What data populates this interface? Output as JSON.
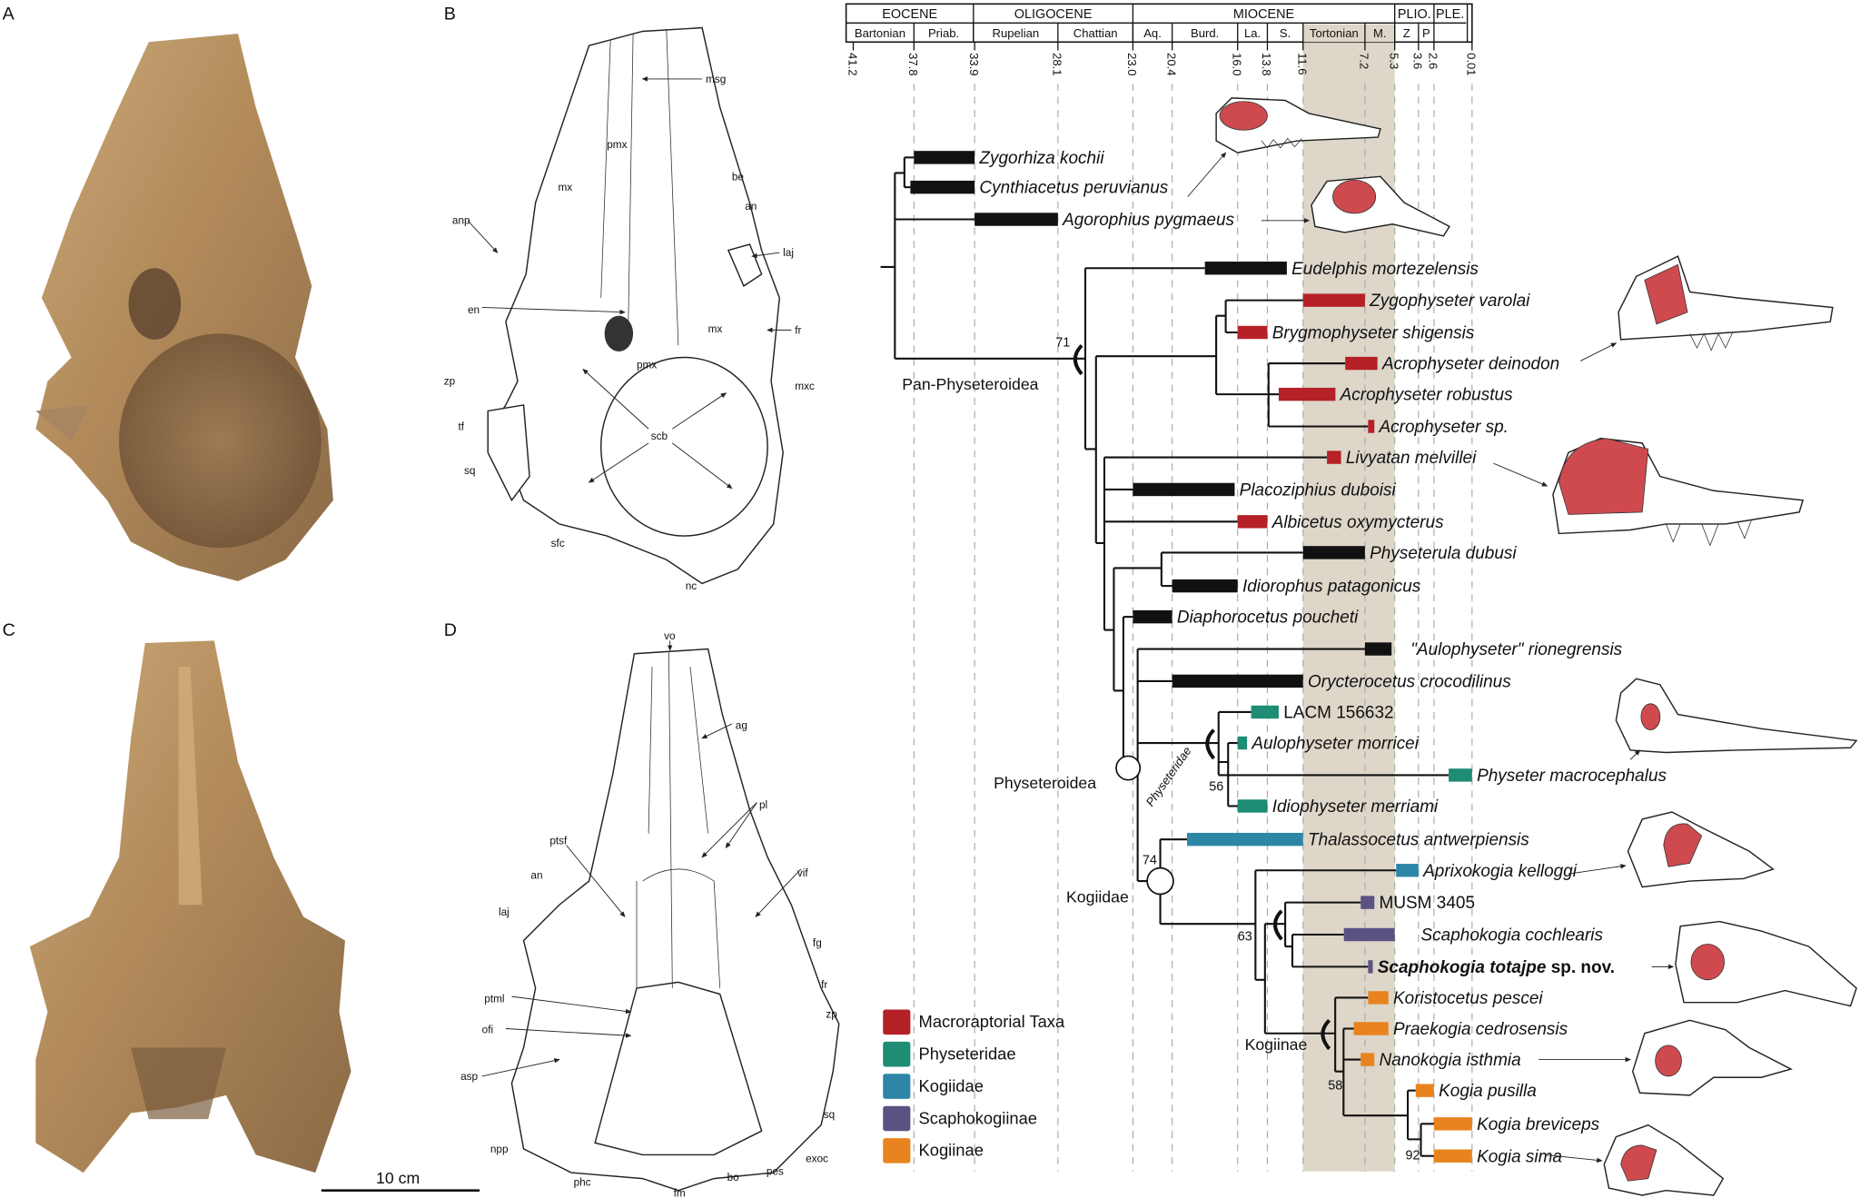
{
  "panels": {
    "a": "A",
    "b": "B",
    "c": "C",
    "d": "D"
  },
  "scale_bar": "10 cm",
  "panel_b_labels": [
    "msg",
    "pmx",
    "mx",
    "be",
    "an",
    "anp",
    "laj",
    "en",
    "mx",
    "fr",
    "pmx",
    "zp",
    "mxc",
    "tf",
    "scb",
    "sq",
    "sfc",
    "nc"
  ],
  "panel_d_labels": [
    "vo",
    "ag",
    "pl",
    "ptsf",
    "an",
    "vif",
    "laj",
    "fg",
    "fr",
    "ptml",
    "zp",
    "ofi",
    "asp",
    "sq",
    "npp",
    "exoc",
    "phc",
    "pes",
    "bo",
    "fm"
  ],
  "timescale": {
    "epochs": [
      "EOCENE",
      "OLIGOCENE",
      "MIOCENE",
      "PLIO.",
      "PLE."
    ],
    "stages": [
      "Bartonian",
      "Priab.",
      "Rupelian",
      "Chattian",
      "Aq.",
      "Burd.",
      "La.",
      "S.",
      "Tortonian",
      "M.",
      "Z",
      "P"
    ],
    "ticks": [
      "41.2",
      "37.8",
      "33.9",
      "28.1",
      "23.0",
      "20.4",
      "16.0",
      "13.8",
      "11.6",
      "7.2",
      "5.3",
      "3.6",
      "2.6",
      "0.01"
    ],
    "highlight_interval_ma": [
      11.6,
      5.3
    ],
    "highlight_color": "#ddd6c9"
  },
  "clades": {
    "pan": "Pan-Physeteroidea",
    "physeteroidea": "Physeteroidea",
    "physeteridae": "Physeteridae",
    "kogiidae": "Kogiidae",
    "kogiinae": "Kogiinae"
  },
  "support": {
    "pan": "71",
    "physeteridae": "56",
    "kogiidae": "74",
    "scapho": "63",
    "kogiinae": "58",
    "kogia": "92"
  },
  "groups": {
    "none": "#111111",
    "macro": "#b52126",
    "physeteridae": "#1f8c74",
    "kogiidae": "#2e86a6",
    "scapho": "#5b5283",
    "kogiinae": "#e8831f"
  },
  "legend": [
    {
      "label": "Macroraptorial Taxa",
      "group": "macro"
    },
    {
      "label": "Physeteridae",
      "group": "physeteridae"
    },
    {
      "label": "Kogiidae",
      "group": "kogiidae"
    },
    {
      "label": "Scaphokogiinae",
      "group": "scapho"
    },
    {
      "label": "Kogiinae",
      "group": "kogiinae"
    }
  ],
  "taxa": [
    {
      "name": "Zygorhiza kochii",
      "group": "none",
      "range_ma": [
        37.8,
        33.9
      ],
      "italic": true
    },
    {
      "name": "Cynthiacetus peruvianus",
      "group": "none",
      "range_ma": [
        38.0,
        33.9
      ],
      "italic": true
    },
    {
      "name": "Agorophius pygmaeus",
      "group": "none",
      "range_ma": [
        33.9,
        28.1
      ],
      "italic": true
    },
    {
      "name": "Eudelphis mortezelensis",
      "group": "none",
      "range_ma": [
        18.2,
        12.6
      ],
      "italic": true
    },
    {
      "name": "Zygophyseter varolai",
      "group": "macro",
      "range_ma": [
        11.6,
        7.2
      ],
      "italic": true
    },
    {
      "name": "Brygmophyseter shigensis",
      "group": "macro",
      "range_ma": [
        16.0,
        13.8
      ],
      "italic": true
    },
    {
      "name": "Acrophyseter deinodon",
      "group": "macro",
      "range_ma": [
        8.6,
        6.4
      ],
      "italic": true
    },
    {
      "name": "Acrophyseter robustus",
      "group": "macro",
      "range_ma": [
        13.1,
        9.3
      ],
      "italic": true
    },
    {
      "name": "Acrophyseter sp.",
      "group": "macro",
      "range_ma": [
        7.0,
        6.6
      ],
      "italic": true
    },
    {
      "name": "Livyatan melvillei",
      "group": "macro",
      "range_ma": [
        9.9,
        8.9
      ],
      "italic": true
    },
    {
      "name": "Placoziphius duboisi",
      "group": "none",
      "range_ma": [
        23.0,
        16.2
      ],
      "italic": true
    },
    {
      "name": "Albicetus oxymycterus",
      "group": "macro",
      "range_ma": [
        16.0,
        13.8
      ],
      "italic": true
    },
    {
      "name": "Physeterula dubusi",
      "group": "none",
      "range_ma": [
        11.6,
        7.2
      ],
      "italic": true
    },
    {
      "name": "Idiorophus patagonicus",
      "group": "none",
      "range_ma": [
        20.4,
        16.0
      ],
      "italic": true
    },
    {
      "name": "Diaphorocetus poucheti",
      "group": "none",
      "range_ma": [
        23.0,
        20.4
      ],
      "italic": true
    },
    {
      "name": "\"Aulophyseter\"  rionegrensis",
      "group": "none",
      "range_ma": [
        7.2,
        5.5
      ],
      "italic": true
    },
    {
      "name": "Orycterocetus crocodilinus",
      "group": "none",
      "range_ma": [
        20.4,
        11.6
      ],
      "italic": true
    },
    {
      "name": "LACM 156632",
      "group": "physeteridae",
      "range_ma": [
        15.0,
        13.1
      ],
      "italic": false
    },
    {
      "name": "Aulophyseter morricei",
      "group": "physeteridae",
      "range_ma": [
        16.0,
        15.3
      ],
      "italic": true
    },
    {
      "name": "Physeter macrocephalus",
      "group": "physeteridae",
      "range_ma": [
        1.6,
        0.01
      ],
      "italic": true
    },
    {
      "name": "Idiophyseter merriami",
      "group": "physeteridae",
      "range_ma": [
        16.0,
        13.8
      ],
      "italic": true
    },
    {
      "name": "Thalassocetus antwerpiensis",
      "group": "kogiidae",
      "range_ma": [
        19.4,
        11.6
      ],
      "italic": true
    },
    {
      "name": "Aprixokogia kelloggi",
      "group": "kogiidae",
      "range_ma": [
        5.2,
        3.6
      ],
      "italic": true
    },
    {
      "name": "MUSM 3405",
      "group": "scapho",
      "range_ma": [
        7.5,
        6.6
      ],
      "italic": false
    },
    {
      "name": "Scaphokogia cochlearis",
      "group": "scapho",
      "range_ma": [
        8.7,
        5.3
      ],
      "italic": true
    },
    {
      "name": "Scaphokogia totajpe",
      "suffix": "sp. nov.",
      "group": "scapho",
      "range_ma": [
        7.0,
        6.7
      ],
      "italic": true,
      "bold": true
    },
    {
      "name": "Koristocetus pescei",
      "group": "kogiinae",
      "range_ma": [
        7.0,
        5.7
      ],
      "italic": true
    },
    {
      "name": "Praekogia cedrosensis",
      "group": "kogiinae",
      "range_ma": [
        8.0,
        5.7
      ],
      "italic": true
    },
    {
      "name": "Nanokogia isthmia",
      "group": "kogiinae",
      "range_ma": [
        7.5,
        6.6
      ],
      "italic": true
    },
    {
      "name": "Kogia pusilla",
      "group": "kogiinae",
      "range_ma": [
        3.8,
        2.6
      ],
      "italic": true
    },
    {
      "name": "Kogia breviceps",
      "group": "kogiinae",
      "range_ma": [
        2.6,
        0.01
      ],
      "italic": true
    },
    {
      "name": "Kogia sima",
      "group": "kogiinae",
      "range_ma": [
        2.6,
        0.01
      ],
      "italic": true
    }
  ]
}
